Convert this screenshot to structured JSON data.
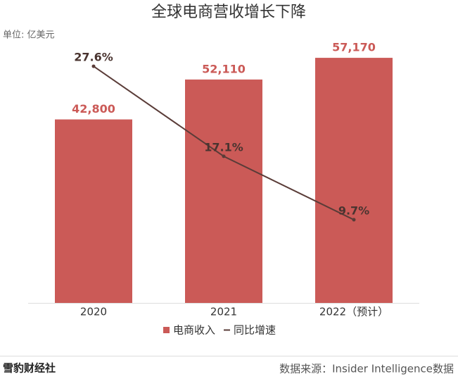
{
  "chart_data": {
    "type": "bar",
    "title": "全球电商营收增长下降",
    "unit_label": "单位: 亿美元",
    "categories": [
      "2020",
      "2021",
      "2022（预计）"
    ],
    "series": [
      {
        "name": "电商收入",
        "color": "#cb5a57",
        "values": [
          42800,
          52110,
          57170
        ],
        "value_labels": [
          "42,800",
          "52,110",
          "57,170"
        ]
      },
      {
        "name": "同比增速",
        "type": "line",
        "axis": "y2",
        "color": "#5a3c38",
        "values": [
          27.6,
          17.1,
          9.7
        ],
        "value_labels": [
          "27.6%",
          "17.1%",
          "9.7%"
        ]
      }
    ],
    "ylim": [
      0,
      70000
    ],
    "y2lim": [
      0,
      35
    ],
    "source": "数据来源：Insider Intelligence数据",
    "logo": "雪豹财经社"
  }
}
